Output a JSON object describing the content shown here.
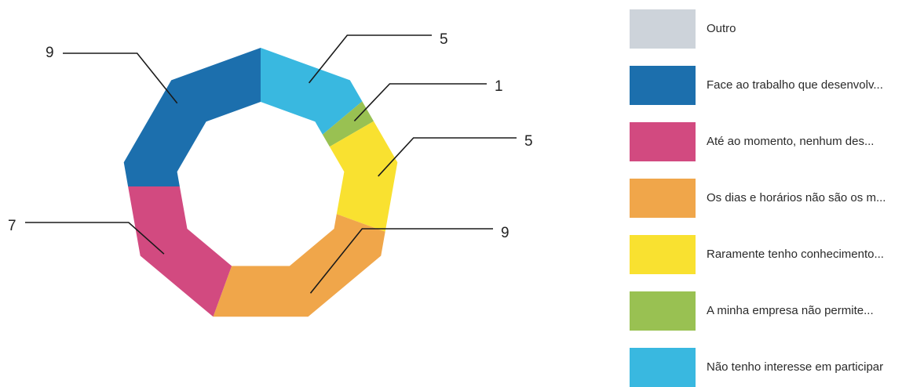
{
  "chart_data": {
    "type": "pie",
    "variant": "donut",
    "title": "",
    "series": [
      {
        "name": "Outro",
        "value": 0,
        "color": "#cdd3da"
      },
      {
        "name": "Face ao trabalho que desenvolv...",
        "value": 9,
        "color": "#1c6fad"
      },
      {
        "name": "Até ao momento, nenhum des...",
        "value": 7,
        "color": "#d24a80"
      },
      {
        "name": "Os dias e horários não são os m...",
        "value": 9,
        "color": "#f0a64a"
      },
      {
        "name": "Raramente tenho conhecimento...",
        "value": 5,
        "color": "#f9e130"
      },
      {
        "name": "A minha empresa não permite...",
        "value": 1,
        "color": "#99c152"
      },
      {
        "name": "Não tenho interesse em participar",
        "value": 5,
        "color": "#39b8e0"
      }
    ],
    "data_labels": [
      "5",
      "1",
      "5",
      "9",
      "7",
      "9"
    ],
    "legend_position": "right"
  }
}
